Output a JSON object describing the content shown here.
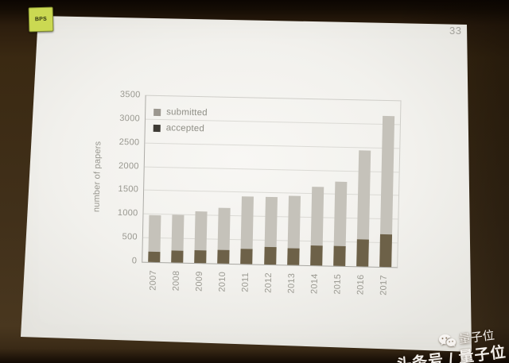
{
  "photo": {
    "sticker_label": "BPS",
    "page_number": "33",
    "sticker_color": "#cbd952"
  },
  "chart_data": {
    "type": "bar",
    "bar_style": "overlay",
    "title": "",
    "xlabel": "",
    "ylabel": "number of papers",
    "categories": [
      "2007",
      "2008",
      "2009",
      "2010",
      "2011",
      "2012",
      "2013",
      "2014",
      "2015",
      "2016",
      "2017"
    ],
    "series": [
      {
        "name": "submitted",
        "color": "#c5c2ba",
        "legend_color": "#9b978f",
        "values": [
          980,
          1010,
          1090,
          1180,
          1420,
          1430,
          1450,
          1650,
          1780,
          2450,
          3180
        ]
      },
      {
        "name": "accepted",
        "color": "#6d6148",
        "legend_color": "#3e3b35",
        "values": [
          225,
          255,
          270,
          290,
          315,
          370,
          360,
          425,
          415,
          575,
          685
        ]
      }
    ],
    "ylim": [
      0,
      3500
    ],
    "yticks": [
      0,
      500,
      1000,
      1500,
      2000,
      2500,
      3000,
      3500
    ],
    "grid": true,
    "legend_position": "top-left"
  },
  "watermark": {
    "icon": "wechat-icon",
    "line1": "量子位",
    "line2": "头条号 / 量子位"
  }
}
